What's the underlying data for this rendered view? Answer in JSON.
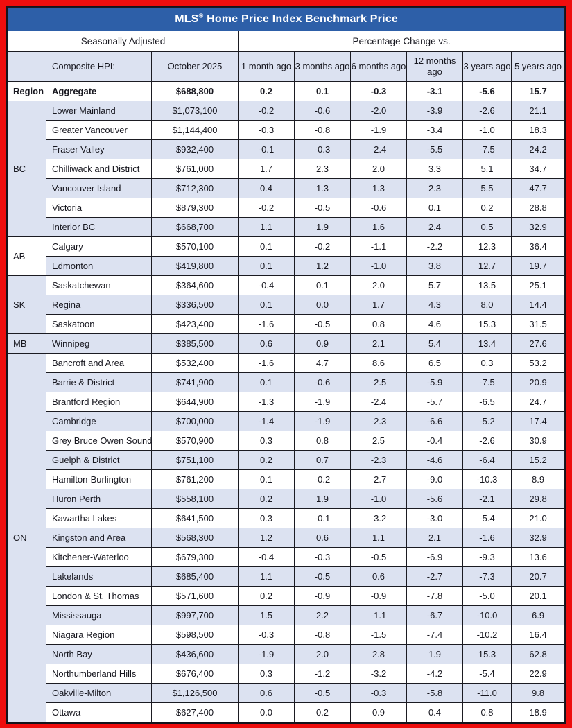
{
  "colors": {
    "frame_red": "#ee0e0e",
    "header_blue": "#2d5fa8",
    "row_lavender": "#dce2f1",
    "grid_line": "#1b1b22",
    "header_text": "#ffffff",
    "body_text": "#17171f"
  },
  "title_parts": {
    "prefix": "MLS",
    "registered_mark": "®",
    "rest": " Home Price Index Benchmark Price"
  },
  "chart_data": {
    "type": "table",
    "title": "MLS® Home Price Index Benchmark Price",
    "left_section_label": "Seasonally Adjusted",
    "right_section_label": "Percentage Change vs.",
    "region_column_header": "Region",
    "name_column_header": "Composite HPI:",
    "price_column_header": "October 2025",
    "period_column_headers": [
      "1 month ago",
      "3 months ago",
      "6 months ago",
      "12 months ago",
      "3 years ago",
      "5 years ago"
    ],
    "aggregate": {
      "name": "Aggregate",
      "price": "$688,800",
      "changes": [
        "0.2",
        "0.1",
        "-0.3",
        "-3.1",
        "-5.6",
        "15.7"
      ]
    },
    "groups": [
      {
        "region": "BC",
        "rows": [
          {
            "name": "Lower Mainland",
            "price": "$1,073,100",
            "changes": [
              "-0.2",
              "-0.6",
              "-2.0",
              "-3.9",
              "-2.6",
              "21.1"
            ]
          },
          {
            "name": "Greater Vancouver",
            "price": "$1,144,400",
            "changes": [
              "-0.3",
              "-0.8",
              "-1.9",
              "-3.4",
              "-1.0",
              "18.3"
            ]
          },
          {
            "name": "Fraser Valley",
            "price": "$932,400",
            "changes": [
              "-0.1",
              "-0.3",
              "-2.4",
              "-5.5",
              "-7.5",
              "24.2"
            ]
          },
          {
            "name": "Chilliwack and District",
            "price": "$761,000",
            "changes": [
              "1.7",
              "2.3",
              "2.0",
              "3.3",
              "5.1",
              "34.7"
            ]
          },
          {
            "name": "Vancouver Island",
            "price": "$712,300",
            "changes": [
              "0.4",
              "1.3",
              "1.3",
              "2.3",
              "5.5",
              "47.7"
            ]
          },
          {
            "name": "Victoria",
            "price": "$879,300",
            "changes": [
              "-0.2",
              "-0.5",
              "-0.6",
              "0.1",
              "0.2",
              "28.8"
            ]
          },
          {
            "name": "Interior BC",
            "price": "$668,700",
            "changes": [
              "1.1",
              "1.9",
              "1.6",
              "2.4",
              "0.5",
              "32.9"
            ]
          }
        ]
      },
      {
        "region": "AB",
        "rows": [
          {
            "name": "Calgary",
            "price": "$570,100",
            "changes": [
              "0.1",
              "-0.2",
              "-1.1",
              "-2.2",
              "12.3",
              "36.4"
            ]
          },
          {
            "name": "Edmonton",
            "price": "$419,800",
            "changes": [
              "0.1",
              "1.2",
              "-1.0",
              "3.8",
              "12.7",
              "19.7"
            ]
          }
        ]
      },
      {
        "region": "SK",
        "rows": [
          {
            "name": "Saskatchewan",
            "price": "$364,600",
            "changes": [
              "-0.4",
              "0.1",
              "2.0",
              "5.7",
              "13.5",
              "25.1"
            ]
          },
          {
            "name": "Regina",
            "price": "$336,500",
            "changes": [
              "0.1",
              "0.0",
              "1.7",
              "4.3",
              "8.0",
              "14.4"
            ]
          },
          {
            "name": "Saskatoon",
            "price": "$423,400",
            "changes": [
              "-1.6",
              "-0.5",
              "0.8",
              "4.6",
              "15.3",
              "31.5"
            ]
          }
        ]
      },
      {
        "region": "MB",
        "rows": [
          {
            "name": "Winnipeg",
            "price": "$385,500",
            "changes": [
              "0.6",
              "0.9",
              "2.1",
              "5.4",
              "13.4",
              "27.6"
            ]
          }
        ]
      },
      {
        "region": "ON",
        "rows": [
          {
            "name": "Bancroft and Area",
            "price": "$532,400",
            "changes": [
              "-1.6",
              "4.7",
              "8.6",
              "6.5",
              "0.3",
              "53.2"
            ]
          },
          {
            "name": "Barrie & District",
            "price": "$741,900",
            "changes": [
              "0.1",
              "-0.6",
              "-2.5",
              "-5.9",
              "-7.5",
              "20.9"
            ]
          },
          {
            "name": "Brantford Region",
            "price": "$644,900",
            "changes": [
              "-1.3",
              "-1.9",
              "-2.4",
              "-5.7",
              "-6.5",
              "24.7"
            ]
          },
          {
            "name": "Cambridge",
            "price": "$700,000",
            "changes": [
              "-1.4",
              "-1.9",
              "-2.3",
              "-6.6",
              "-5.2",
              "17.4"
            ]
          },
          {
            "name": "Grey Bruce Owen Sound",
            "price": "$570,900",
            "changes": [
              "0.3",
              "0.8",
              "2.5",
              "-0.4",
              "-2.6",
              "30.9"
            ]
          },
          {
            "name": "Guelph & District",
            "price": "$751,100",
            "changes": [
              "0.2",
              "0.7",
              "-2.3",
              "-4.6",
              "-6.4",
              "15.2"
            ]
          },
          {
            "name": "Hamilton-Burlington",
            "price": "$761,200",
            "changes": [
              "0.1",
              "-0.2",
              "-2.7",
              "-9.0",
              "-10.3",
              "8.9"
            ]
          },
          {
            "name": "Huron Perth",
            "price": "$558,100",
            "changes": [
              "0.2",
              "1.9",
              "-1.0",
              "-5.6",
              "-2.1",
              "29.8"
            ]
          },
          {
            "name": "Kawartha Lakes",
            "price": "$641,500",
            "changes": [
              "0.3",
              "-0.1",
              "-3.2",
              "-3.0",
              "-5.4",
              "21.0"
            ]
          },
          {
            "name": "Kingston and Area",
            "price": "$568,300",
            "changes": [
              "1.2",
              "0.6",
              "1.1",
              "2.1",
              "-1.6",
              "32.9"
            ]
          },
          {
            "name": "Kitchener-Waterloo",
            "price": "$679,300",
            "changes": [
              "-0.4",
              "-0.3",
              "-0.5",
              "-6.9",
              "-9.3",
              "13.6"
            ]
          },
          {
            "name": "Lakelands",
            "price": "$685,400",
            "changes": [
              "1.1",
              "-0.5",
              "0.6",
              "-2.7",
              "-7.3",
              "20.7"
            ]
          },
          {
            "name": "London & St. Thomas",
            "price": "$571,600",
            "changes": [
              "0.2",
              "-0.9",
              "-0.9",
              "-7.8",
              "-5.0",
              "20.1"
            ]
          },
          {
            "name": "Mississauga",
            "price": "$997,700",
            "changes": [
              "1.5",
              "2.2",
              "-1.1",
              "-6.7",
              "-10.0",
              "6.9"
            ]
          },
          {
            "name": "Niagara Region",
            "price": "$598,500",
            "changes": [
              "-0.3",
              "-0.8",
              "-1.5",
              "-7.4",
              "-10.2",
              "16.4"
            ]
          },
          {
            "name": "North Bay",
            "price": "$436,600",
            "changes": [
              "-1.9",
              "2.0",
              "2.8",
              "1.9",
              "15.3",
              "62.8"
            ]
          },
          {
            "name": "Northumberland Hills",
            "price": "$676,400",
            "changes": [
              "0.3",
              "-1.2",
              "-3.2",
              "-4.2",
              "-5.4",
              "22.9"
            ]
          },
          {
            "name": "Oakville-Milton",
            "price": "$1,126,500",
            "changes": [
              "0.6",
              "-0.5",
              "-0.3",
              "-5.8",
              "-11.0",
              "9.8"
            ]
          },
          {
            "name": "Ottawa",
            "price": "$627,400",
            "changes": [
              "0.0",
              "0.2",
              "0.9",
              "0.4",
              "0.8",
              "18.9"
            ]
          }
        ]
      }
    ]
  }
}
